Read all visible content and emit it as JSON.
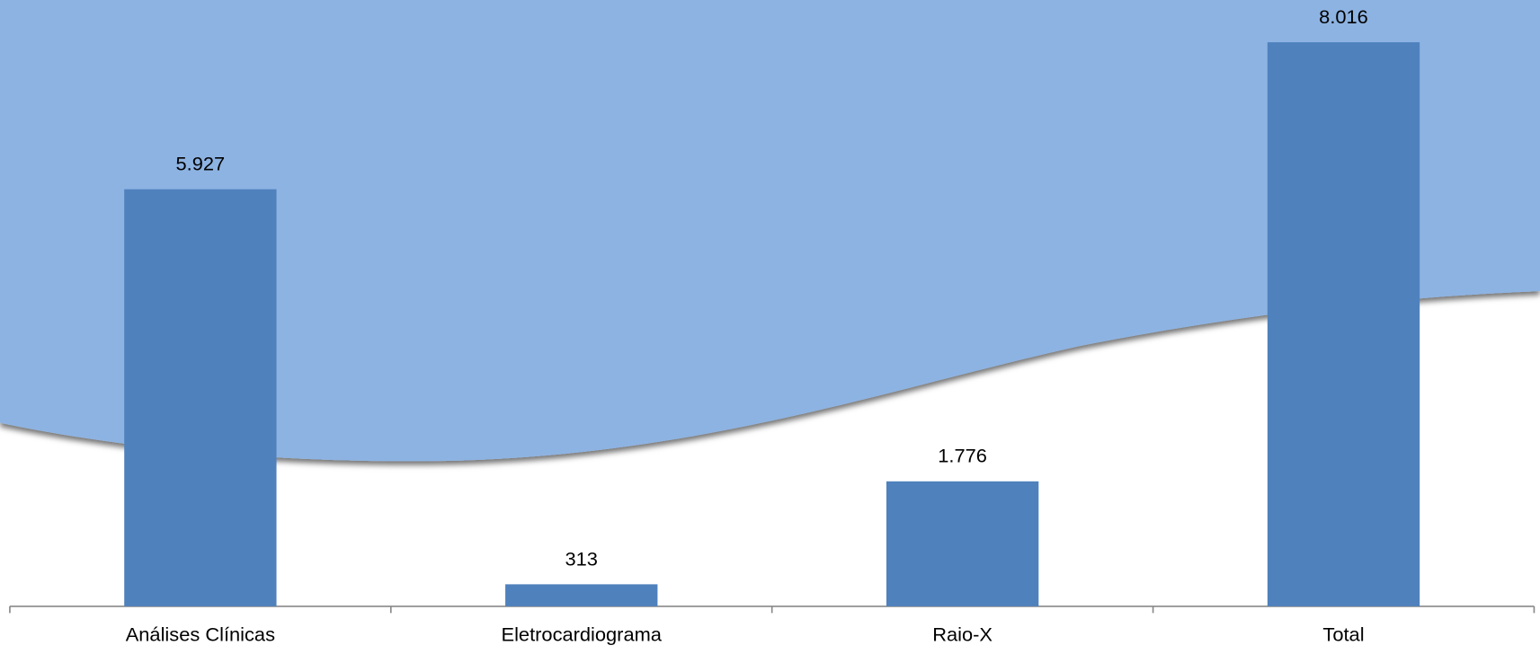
{
  "chart_data": {
    "type": "bar",
    "categories": [
      "Análises Clínicas",
      "Eletrocardiograma",
      "Raio-X",
      "Total"
    ],
    "values": [
      5927,
      313,
      1776,
      8016
    ],
    "value_labels": [
      "5.927",
      "313",
      "1.776",
      "8.016"
    ],
    "color": "#4f81bd"
  }
}
